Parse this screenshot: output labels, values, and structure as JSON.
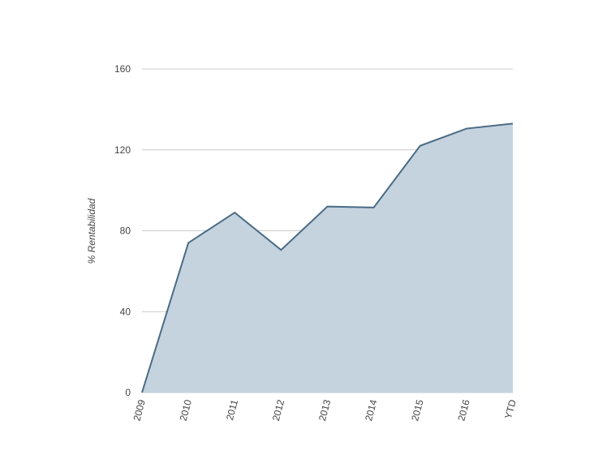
{
  "chart_data": {
    "type": "area",
    "y_label": "% Rentabilidad",
    "categories": [
      "2009",
      "2010",
      "2011",
      "2012",
      "2013",
      "2014",
      "2015",
      "2016",
      "YTD"
    ],
    "values": [
      0,
      74,
      89,
      70.5,
      92,
      91.5,
      122,
      130.5,
      133
    ],
    "color": "#4a6b85",
    "fill": "#c5d3df",
    "ylim": [
      0,
      160
    ],
    "yticks": [
      0,
      40,
      80,
      120,
      160
    ],
    "grid": true
  }
}
